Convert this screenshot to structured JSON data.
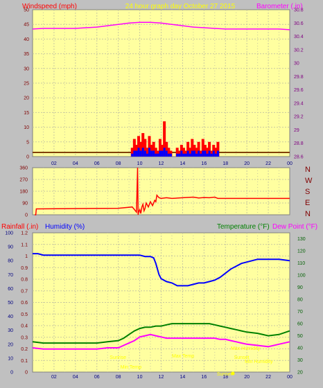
{
  "header": {
    "left_label": "Windspeed (mph)",
    "center_label": "24 hour graph day   October 27 2015",
    "right_label": "Barometer (.in)"
  },
  "colors": {
    "plot_bg": "#ffffa0",
    "frame_bg": "#c0c0c0",
    "grid": "#c8c8a0",
    "windspeed": "#ff0000",
    "gust_fill": "#ff0000",
    "avg_wind": "#0000ff",
    "barometer": "#ff00ff",
    "direction": "#ff0000",
    "humidity": "#0000ff",
    "temperature": "#008000",
    "dewpoint": "#ff00ff",
    "rainfall": "#ff0000",
    "annotation": "#ffff00",
    "baseline": "#804000"
  },
  "icons": {
    "sun": "sun-icon"
  },
  "chart_data": [
    {
      "type": "line",
      "title": "24 hour graph day   October 27 2015",
      "xlabel": "",
      "ylabel": "Windspeed (mph)",
      "y2label": "Barometer (.in)",
      "x_ticks": [
        "02",
        "04",
        "06",
        "08",
        "10",
        "12",
        "14",
        "16",
        "18",
        "20",
        "22",
        "00"
      ],
      "xlim": [
        0,
        24
      ],
      "ylim": [
        0,
        50
      ],
      "y_ticks": [
        0,
        5,
        10,
        15,
        20,
        25,
        30,
        35,
        40,
        45,
        50
      ],
      "y2lim": [
        28.6,
        30.8
      ],
      "y2_ticks": [
        "28.6",
        "28.8",
        "29",
        "29.2",
        "29.4",
        "29.6",
        "29.8",
        "30",
        "30.2",
        "30.4",
        "30.6",
        "30.8"
      ],
      "grid": true,
      "series": [
        {
          "name": "Barometer",
          "axis": "right",
          "x": [
            0,
            1,
            2,
            3,
            4,
            5,
            6,
            7,
            8,
            9,
            10,
            11,
            12,
            13,
            14,
            15,
            16,
            17,
            18,
            19,
            20,
            21,
            22,
            23,
            24
          ],
          "values": [
            30.51,
            30.52,
            30.52,
            30.52,
            30.52,
            30.53,
            30.54,
            30.56,
            30.58,
            30.6,
            30.61,
            30.61,
            30.6,
            30.58,
            30.56,
            30.54,
            30.53,
            30.52,
            30.51,
            30.51,
            30.51,
            30.51,
            30.51,
            30.51,
            30.5
          ]
        },
        {
          "name": "Wind gust",
          "axis": "left",
          "x": [
            9.3,
            9.5,
            9.7,
            9.9,
            10.1,
            10.3,
            10.5,
            10.7,
            10.9,
            11.1,
            11.3,
            11.5,
            11.7,
            11.9,
            12.1,
            12.3,
            12.5,
            12.7,
            12.9,
            13.1,
            13.3,
            13.5,
            13.7,
            13.9,
            14.1,
            14.3,
            14.5,
            14.7,
            14.9,
            15.1,
            15.3,
            15.5,
            15.7,
            15.9,
            16.1,
            16.3,
            16.5,
            16.7,
            16.9,
            17.1,
            17.3
          ],
          "values": [
            3,
            6,
            4,
            7,
            5,
            8,
            6,
            3,
            7,
            4,
            5,
            3,
            2,
            6,
            4,
            12,
            5,
            3,
            2,
            0,
            0,
            3,
            2,
            4,
            3,
            2,
            5,
            3,
            6,
            4,
            3,
            5,
            2,
            6,
            4,
            3,
            5,
            2,
            4,
            3,
            5
          ]
        },
        {
          "name": "Average wind",
          "axis": "left",
          "x": [
            9.3,
            9.5,
            9.7,
            9.9,
            10.1,
            10.3,
            10.5,
            10.7,
            10.9,
            11.1,
            11.3,
            11.5,
            11.7,
            11.9,
            12.1,
            12.3,
            12.5,
            12.7,
            12.9,
            13.1,
            13.3,
            13.5,
            13.7,
            13.9,
            14.1,
            14.3,
            14.5,
            14.7,
            14.9,
            15.1,
            15.3,
            15.5,
            15.7,
            15.9,
            16.1,
            16.3,
            16.5,
            16.7,
            16.9,
            17.1,
            17.3
          ],
          "values": [
            1,
            2,
            2,
            3,
            2,
            3,
            2,
            1,
            3,
            2,
            2,
            1,
            1,
            2,
            2,
            3,
            2,
            1,
            1,
            0,
            0,
            1,
            1,
            2,
            1,
            1,
            2,
            1,
            2,
            2,
            1,
            2,
            1,
            2,
            2,
            1,
            2,
            1,
            2,
            1,
            2
          ]
        }
      ]
    },
    {
      "type": "line",
      "title": "",
      "xlabel": "",
      "ylabel": "",
      "y_ticks": [
        0,
        90,
        180,
        270,
        360
      ],
      "ylim": [
        0,
        360
      ],
      "xlim": [
        0,
        24
      ],
      "right_labels": [
        "N",
        "W",
        "S",
        "E",
        "N"
      ],
      "grid": true,
      "series": [
        {
          "name": "Wind direction",
          "x": [
            0.2,
            0.3,
            0.35,
            0.4,
            8.0,
            9.3,
            9.5,
            9.7,
            9.8,
            9.85,
            9.9,
            10.0,
            10.1,
            10.2,
            10.3,
            10.4,
            10.5,
            10.6,
            10.8,
            11.0,
            11.2,
            11.4,
            11.5,
            11.6,
            11.8,
            12.0,
            12.5,
            13.0,
            14.0,
            15.0,
            15.5,
            16.0,
            16.5,
            17.0,
            17.3,
            24.0
          ],
          "values": [
            0,
            0,
            45,
            45,
            50,
            60,
            40,
            20,
            360,
            0,
            20,
            40,
            10,
            60,
            80,
            30,
            50,
            90,
            60,
            100,
            70,
            110,
            100,
            150,
            130,
            125,
            130,
            125,
            130,
            135,
            128,
            132,
            130,
            135,
            125,
            125
          ]
        }
      ]
    },
    {
      "type": "line",
      "title": "",
      "xlabel": "",
      "ylabel": "Rainfall (.in)",
      "y2label": "Temperature (°F)",
      "legend_labels": [
        "Rainfall (.in)",
        "Humidity (%)",
        "Temperature (°F)",
        "Dew Point (°F)"
      ],
      "x_ticks": [
        "02",
        "04",
        "06",
        "08",
        "10",
        "12",
        "14",
        "16",
        "18",
        "20",
        "22",
        "00"
      ],
      "xlim": [
        0,
        24
      ],
      "ylim_rain": [
        0,
        1.2
      ],
      "rain_ticks": [
        "0",
        "0.1",
        "0.2",
        "0.3",
        "0.4",
        "0.5",
        "0.6",
        "0.7",
        "0.8",
        "0.9",
        "1",
        "1.1",
        "1.2"
      ],
      "ylim_humidity": [
        0,
        100
      ],
      "humidity_ticks": [
        "0",
        "10",
        "20",
        "30",
        "40",
        "50",
        "60",
        "70",
        "80",
        "90",
        "100"
      ],
      "ylim_temp": [
        20,
        135
      ],
      "temp_ticks": [
        "20",
        "30",
        "40",
        "50",
        "60",
        "70",
        "80",
        "90",
        "100",
        "110",
        "120",
        "130"
      ],
      "grid": true,
      "annotations": [
        "Sunrise",
        "Min Temp",
        "Max Temp",
        "Max Humidity",
        "Sunset",
        "Min Humidity",
        "Sunset"
      ],
      "series": [
        {
          "name": "Humidity",
          "axis": "humidity",
          "x": [
            0,
            0.5,
            1,
            2,
            4,
            6,
            8,
            9,
            10,
            10.5,
            11,
            11.3,
            11.5,
            11.8,
            12,
            12.5,
            13,
            13.5,
            14,
            14.5,
            15,
            15.5,
            16,
            16.5,
            17,
            17.5,
            18,
            18.5,
            19,
            19.5,
            20,
            20.5,
            21,
            22,
            23,
            24
          ],
          "values": [
            85,
            85,
            84,
            84,
            84,
            84,
            84,
            84,
            84,
            83,
            83,
            82,
            78,
            70,
            67,
            65,
            64,
            62,
            62,
            62,
            63,
            64,
            64,
            65,
            66,
            68,
            71,
            74,
            76,
            78,
            79,
            80,
            81,
            81,
            81,
            80
          ]
        },
        {
          "name": "Temperature",
          "axis": "temp",
          "x": [
            0,
            1,
            2,
            3,
            4,
            5,
            6,
            7,
            8,
            8.5,
            9,
            9.5,
            10,
            10.5,
            11,
            11.5,
            12,
            12.5,
            13,
            13.5,
            14,
            14.5,
            15,
            15.5,
            16,
            16.5,
            17,
            17.5,
            18,
            18.5,
            19,
            19.5,
            20,
            21,
            22,
            23,
            24
          ],
          "values": [
            45,
            44,
            44,
            44,
            44,
            44,
            44,
            45,
            46,
            48,
            51,
            54,
            56,
            57,
            57,
            58,
            58,
            59,
            60,
            60,
            60,
            60,
            60,
            60,
            60,
            60,
            59,
            58,
            57,
            56,
            55,
            54,
            53,
            52,
            50,
            51,
            54
          ]
        },
        {
          "name": "Dew Point",
          "axis": "temp",
          "x": [
            0,
            1,
            2,
            3,
            4,
            5,
            6,
            7,
            8,
            8.5,
            9,
            9.5,
            10,
            10.5,
            11,
            11.5,
            12,
            12.5,
            13,
            14,
            15,
            16,
            17,
            17.5,
            18,
            18.5,
            19,
            19.5,
            20,
            21,
            22,
            23,
            24
          ],
          "values": [
            40,
            39,
            39,
            39,
            39,
            39,
            39,
            40,
            40,
            42,
            44,
            46,
            49,
            50,
            51,
            50,
            49,
            48,
            48,
            48,
            48,
            48,
            48,
            47,
            47,
            46,
            45,
            44,
            43,
            42,
            41,
            43,
            45
          ]
        }
      ]
    }
  ]
}
